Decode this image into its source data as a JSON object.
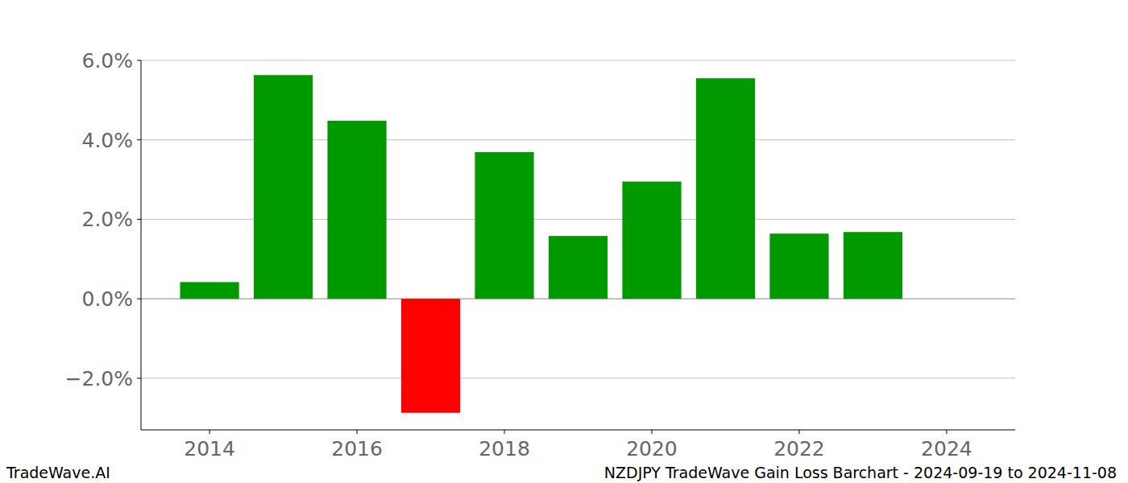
{
  "chart_data": {
    "type": "bar",
    "title": "NZDJPY TradeWave Gain Loss Barchart - 2024-09-19 to 2024-11-08",
    "watermark": "TradeWave.AI",
    "x": [
      2014,
      2015,
      2016,
      2017,
      2018,
      2019,
      2020,
      2021,
      2022,
      2023
    ],
    "values": [
      0.42,
      5.63,
      4.48,
      -2.87,
      3.69,
      1.58,
      2.95,
      5.55,
      1.64,
      1.68
    ],
    "colors": [
      "#009900",
      "#009900",
      "#009900",
      "#ff0000",
      "#009900",
      "#009900",
      "#009900",
      "#009900",
      "#009900",
      "#009900"
    ],
    "xlim": [
      2013.07,
      2024.93
    ],
    "xticks": [
      2014,
      2016,
      2018,
      2020,
      2022,
      2024
    ],
    "ylim": [
      -3.3,
      6.0
    ],
    "yticks": [
      {
        "value": 6,
        "label": "6.0%"
      },
      {
        "value": 4,
        "label": "4.0%"
      },
      {
        "value": 2,
        "label": "2.0%"
      },
      {
        "value": 0,
        "label": "0.0%"
      },
      {
        "value": -2,
        "label": "−2.0%"
      }
    ],
    "grid": true
  }
}
